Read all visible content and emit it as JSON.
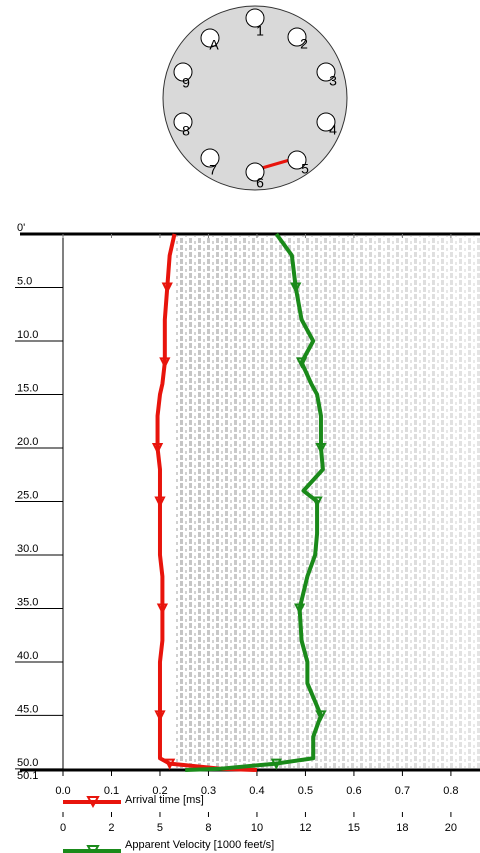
{
  "diagram": {
    "tubes": [
      "1",
      "2",
      "3",
      "4",
      "5",
      "6",
      "7",
      "8",
      "9",
      "A"
    ]
  },
  "chart_data": {
    "type": "line",
    "depth": [
      0,
      2,
      5,
      8,
      10,
      12,
      14,
      15,
      17,
      20,
      22,
      24,
      25,
      28,
      30,
      32,
      35,
      38,
      40,
      42,
      45,
      47,
      49,
      49.5,
      50,
      50.1
    ],
    "ylim": [
      0,
      50.1
    ],
    "yticks": [
      {
        "value": 0,
        "label": "0'"
      },
      {
        "value": 5,
        "label": "5.0"
      },
      {
        "value": 10,
        "label": "10.0"
      },
      {
        "value": 15,
        "label": "15.0"
      },
      {
        "value": 20,
        "label": "20.0"
      },
      {
        "value": 25,
        "label": "25.0"
      },
      {
        "value": 30,
        "label": "30.0"
      },
      {
        "value": 35,
        "label": "35.0"
      },
      {
        "value": 40,
        "label": "40.0"
      },
      {
        "value": 45,
        "label": "45.0"
      },
      {
        "value": 50,
        "label": "50.0"
      },
      {
        "value": 50.1,
        "label": "50.1"
      }
    ],
    "xlim": [
      0,
      0.86
    ],
    "xticks": [
      {
        "value": 0,
        "label": "0.0"
      },
      0.1,
      0.2,
      0.3,
      0.4,
      0.5,
      0.6,
      0.7,
      0.8
    ],
    "x2lim": [
      0,
      21.5
    ],
    "x2ticks": [
      0,
      {
        "value": 2.5,
        "label": "2"
      },
      5,
      {
        "value": 7.5,
        "label": "8"
      },
      10,
      {
        "value": 12.5,
        "label": "12"
      },
      15,
      {
        "value": 17.5,
        "label": "18"
      },
      20
    ],
    "series": [
      {
        "name": "Arrival time [ms]",
        "color": "#e8140c",
        "axis": "x",
        "values": [
          0.23,
          0.22,
          0.215,
          0.21,
          0.21,
          0.21,
          0.205,
          0.2,
          0.195,
          0.195,
          0.2,
          0.2,
          0.2,
          0.2,
          0.2,
          0.205,
          0.205,
          0.205,
          0.2,
          0.2,
          0.2,
          0.2,
          0.2,
          0.22,
          0.33,
          0.4
        ]
      },
      {
        "name": "Apparent Velocity [1000 feet/s]",
        "color": "#1a8a1a",
        "axis": "x2",
        "values": [
          11.0,
          11.8,
          12.0,
          12.3,
          12.9,
          12.3,
          12.8,
          13.1,
          13.3,
          13.3,
          13.4,
          12.4,
          13.1,
          13.1,
          13.0,
          12.6,
          12.2,
          12.3,
          12.6,
          12.6,
          13.3,
          12.9,
          12.9,
          11.0,
          8.0,
          6.3
        ]
      }
    ]
  }
}
